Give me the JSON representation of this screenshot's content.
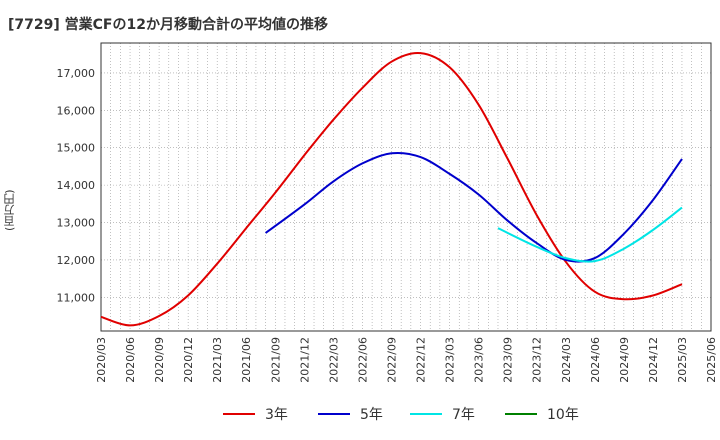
{
  "chart_data": {
    "type": "line",
    "title": "[7729]  営業CFの12か月移動合計の平均値の推移",
    "ylabel": "(百万円)",
    "xlabel": "",
    "ylim": [
      10100,
      17800
    ],
    "yticks": [
      11000,
      12000,
      13000,
      14000,
      15000,
      16000,
      17000
    ],
    "ytick_labels": [
      "11,000",
      "12,000",
      "13,000",
      "14,000",
      "15,000",
      "16,000",
      "17,000"
    ],
    "xticks": [
      "2020/03",
      "2020/06",
      "2020/09",
      "2020/12",
      "2021/03",
      "2021/06",
      "2021/09",
      "2021/12",
      "2022/03",
      "2022/06",
      "2022/09",
      "2022/12",
      "2023/03",
      "2023/06",
      "2023/09",
      "2023/12",
      "2024/03",
      "2024/06",
      "2024/09",
      "2024/12",
      "2025/03",
      "2025/06"
    ],
    "grid": true,
    "legend_position": "bottom",
    "series": [
      {
        "name": "3年",
        "color": "#e00000",
        "x": [
          "2020/03",
          "2020/06",
          "2020/09",
          "2020/12",
          "2021/03",
          "2021/06",
          "2021/09",
          "2021/12",
          "2022/03",
          "2022/06",
          "2022/09",
          "2022/12",
          "2023/03",
          "2023/06",
          "2023/09",
          "2023/12",
          "2024/03",
          "2024/06",
          "2024/09",
          "2024/12",
          "2025/03"
        ],
        "values": [
          10480,
          10250,
          10500,
          11050,
          11900,
          12850,
          13800,
          14800,
          15750,
          16600,
          17300,
          17530,
          17150,
          16150,
          14700,
          13200,
          11950,
          11150,
          10950,
          11050,
          11350
        ]
      },
      {
        "name": "5年",
        "color": "#0000cc",
        "x": [
          "2021/08",
          "2021/12",
          "2022/03",
          "2022/06",
          "2022/09",
          "2022/12",
          "2023/03",
          "2023/06",
          "2023/09",
          "2023/12",
          "2024/03",
          "2024/06",
          "2024/09",
          "2024/12",
          "2025/03"
        ],
        "values": [
          12720,
          13480,
          14100,
          14580,
          14850,
          14750,
          14300,
          13750,
          13050,
          12450,
          12000,
          12050,
          12700,
          13600,
          14700
        ]
      },
      {
        "name": "7年",
        "color": "#00e5e5",
        "x": [
          "2023/08",
          "2023/12",
          "2024/03",
          "2024/06",
          "2024/09",
          "2024/12",
          "2025/03"
        ],
        "values": [
          12850,
          12350,
          12050,
          11970,
          12300,
          12800,
          13400
        ]
      },
      {
        "name": "10年",
        "color": "#008000",
        "x": [],
        "values": []
      }
    ]
  }
}
